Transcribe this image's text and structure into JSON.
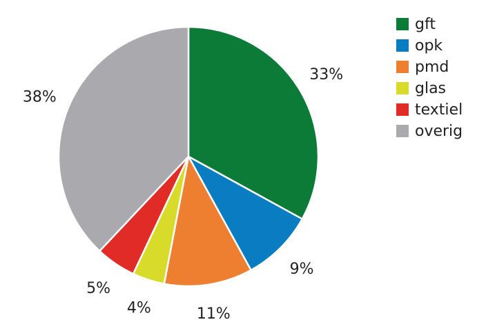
{
  "chart_data": {
    "type": "pie",
    "categories": [
      "gft",
      "opk",
      "pmd",
      "glas",
      "textiel",
      "overig"
    ],
    "values": [
      33,
      9,
      11,
      4,
      5,
      38
    ],
    "value_labels": [
      "33%",
      "9%",
      "11%",
      "4%",
      "5%",
      "38%"
    ],
    "colors": [
      "#0b7b37",
      "#0a7cc1",
      "#ee7f31",
      "#d8db2a",
      "#e12b27",
      "#a9a9ae"
    ],
    "legend": "top-right"
  }
}
